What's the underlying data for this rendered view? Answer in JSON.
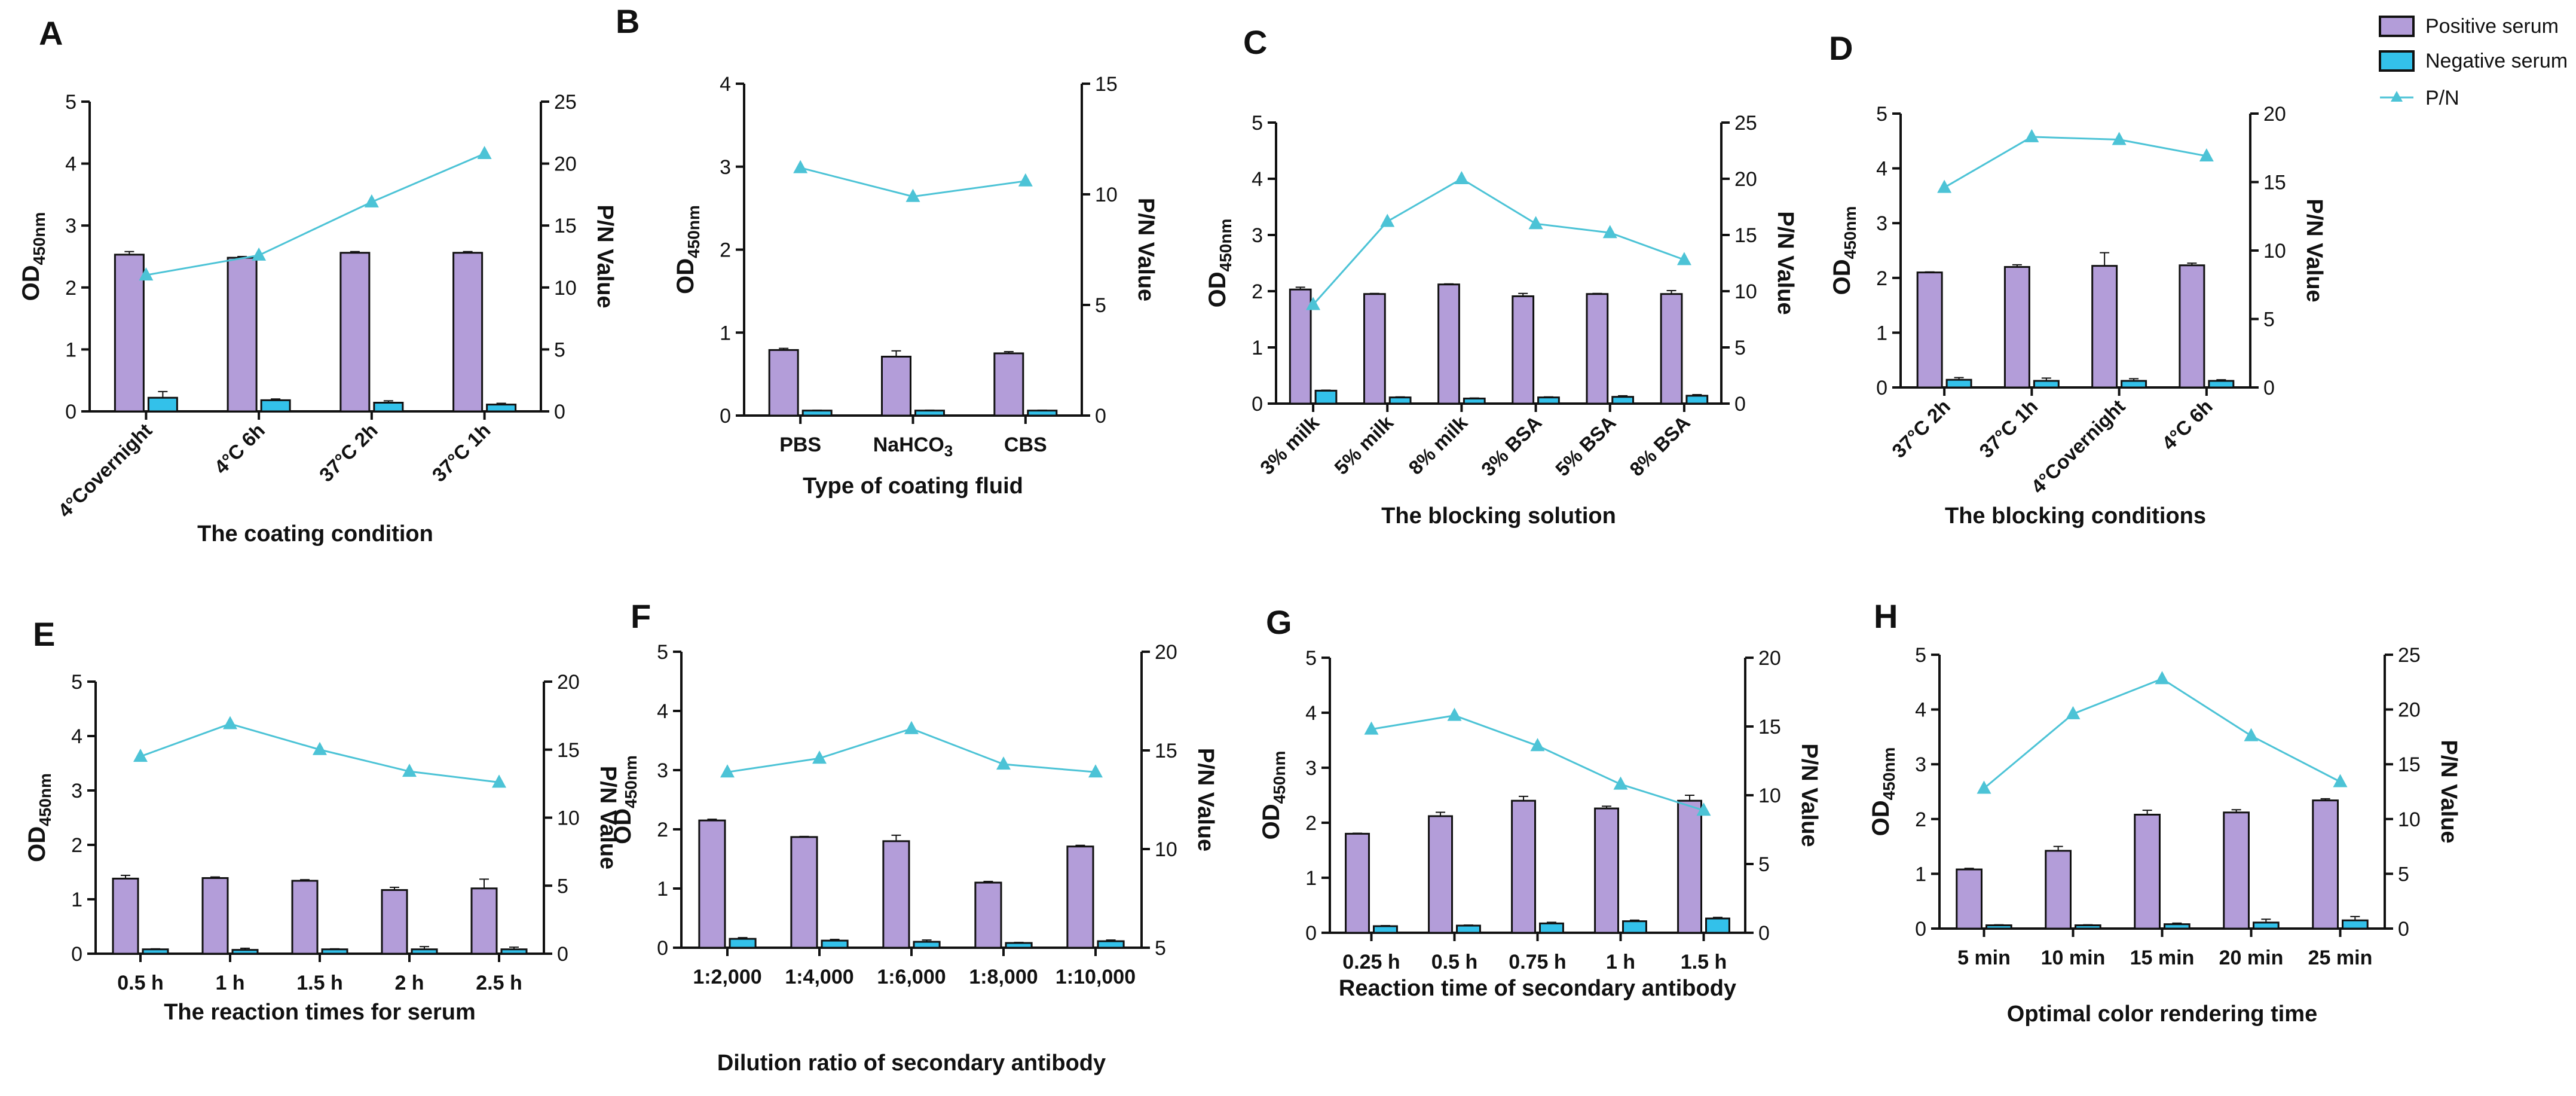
{
  "legend": {
    "positive": "Positive serum",
    "negative": "Negative serum",
    "pn": "P/N"
  },
  "colors": {
    "positive": "#B39DD9",
    "negative": "#33C1EA",
    "pn": "#4CC3D6",
    "axis": "#111111"
  },
  "chart_data": [
    {
      "id": "A",
      "type": "bar",
      "xlabel": "The  coating condition",
      "ylabel_main": "OD",
      "ylabel_sub": "450nm",
      "y2label": "P/N Value",
      "ylim": [
        0,
        5
      ],
      "yticks": [
        0,
        1,
        2,
        3,
        4,
        5
      ],
      "y2lim": [
        0,
        25
      ],
      "y2ticks": [
        0,
        5,
        10,
        15,
        20,
        25
      ],
      "categories": [
        "4°Covernight",
        "4°C 6h",
        "37°C 2h",
        "37°C 1h"
      ],
      "rotate_labels": true,
      "series": [
        {
          "name": "Positive serum",
          "values": [
            2.53,
            2.48,
            2.56,
            2.56
          ],
          "errors": [
            0.05,
            0.02,
            0.02,
            0.02
          ]
        },
        {
          "name": "Negative serum",
          "values": [
            0.22,
            0.18,
            0.14,
            0.11
          ],
          "errors": [
            0.1,
            0.02,
            0.03,
            0.02
          ]
        }
      ],
      "pn": [
        11.0,
        12.6,
        16.9,
        20.8
      ]
    },
    {
      "id": "B",
      "type": "bar",
      "xlabel": "Type of coating fluid",
      "ylabel_main": "OD",
      "ylabel_sub": "450nm",
      "y2label": "P/N Value",
      "ylim": [
        0,
        4
      ],
      "yticks": [
        0,
        1,
        2,
        3,
        4
      ],
      "y2lim": [
        0,
        15
      ],
      "y2ticks": [
        0,
        5,
        10,
        15
      ],
      "categories": [
        "PBS",
        "NaHCO3",
        "CBS"
      ],
      "rotate_labels": false,
      "series": [
        {
          "name": "Positive serum",
          "values": [
            0.79,
            0.71,
            0.75
          ],
          "errors": [
            0.02,
            0.07,
            0.02
          ]
        },
        {
          "name": "Negative serum",
          "values": [
            0.06,
            0.06,
            0.06
          ],
          "errors": [
            0.005,
            0.005,
            0.005
          ]
        }
      ],
      "pn": [
        11.2,
        9.9,
        10.6
      ]
    },
    {
      "id": "C",
      "type": "bar",
      "xlabel": "The  blocking solution",
      "ylabel_main": "OD",
      "ylabel_sub": "450nm",
      "y2label": "P/N Value",
      "ylim": [
        0,
        5
      ],
      "yticks": [
        0,
        1,
        2,
        3,
        4,
        5
      ],
      "y2lim": [
        0,
        25
      ],
      "y2ticks": [
        0,
        5,
        10,
        15,
        20,
        25
      ],
      "categories": [
        "3% milk",
        "5% milk",
        "8% milk",
        "3% BSA",
        "5% BSA",
        "8% BSA"
      ],
      "rotate_labels": true,
      "series": [
        {
          "name": "Positive serum",
          "values": [
            2.03,
            1.95,
            2.12,
            1.91,
            1.95,
            1.95
          ],
          "errors": [
            0.04,
            0.01,
            0.01,
            0.05,
            0.01,
            0.06
          ]
        },
        {
          "name": "Negative serum",
          "values": [
            0.23,
            0.11,
            0.09,
            0.11,
            0.12,
            0.14
          ],
          "errors": [
            0.01,
            0.01,
            0.01,
            0.01,
            0.02,
            0.02
          ]
        }
      ],
      "pn": [
        8.8,
        16.2,
        20.0,
        16.0,
        15.2,
        12.8
      ]
    },
    {
      "id": "D",
      "type": "bar",
      "xlabel": "The  blocking conditions",
      "ylabel_main": "OD",
      "ylabel_sub": "450nm",
      "y2label": "P/N Value",
      "ylim": [
        0,
        5
      ],
      "yticks": [
        0,
        1,
        2,
        3,
        4,
        5
      ],
      "y2lim": [
        0,
        20
      ],
      "y2ticks": [
        0,
        5,
        10,
        15,
        20
      ],
      "categories": [
        "37°C 2h",
        "37°C 1h",
        "4°Covernight",
        "4°C 6h"
      ],
      "rotate_labels": true,
      "series": [
        {
          "name": "Positive serum",
          "values": [
            2.1,
            2.2,
            2.22,
            2.23
          ],
          "errors": [
            0.01,
            0.04,
            0.24,
            0.04
          ]
        },
        {
          "name": "Negative serum",
          "values": [
            0.14,
            0.12,
            0.12,
            0.12
          ],
          "errors": [
            0.04,
            0.05,
            0.04,
            0.02
          ]
        }
      ],
      "pn": [
        14.6,
        18.3,
        18.1,
        16.9
      ]
    },
    {
      "id": "E",
      "type": "bar",
      "xlabel": "The  reaction times for serum",
      "ylabel_main": "OD",
      "ylabel_sub": "450nm",
      "y2label": "P/N Value",
      "ylim": [
        0,
        5
      ],
      "yticks": [
        0,
        1,
        2,
        3,
        4,
        5
      ],
      "y2lim": [
        0,
        20
      ],
      "y2ticks": [
        0,
        5,
        10,
        15,
        20
      ],
      "categories": [
        "0.5 h",
        "1 h",
        "1.5 h",
        "2 h",
        "2.5 h"
      ],
      "rotate_labels": false,
      "series": [
        {
          "name": "Positive serum",
          "values": [
            1.38,
            1.39,
            1.34,
            1.17,
            1.2
          ],
          "errors": [
            0.06,
            0.02,
            0.02,
            0.05,
            0.17
          ]
        },
        {
          "name": "Negative serum",
          "values": [
            0.08,
            0.07,
            0.08,
            0.08,
            0.08
          ],
          "errors": [
            0.01,
            0.03,
            0.01,
            0.05,
            0.04
          ]
        }
      ],
      "pn": [
        14.5,
        16.9,
        15.0,
        13.4,
        12.6
      ]
    },
    {
      "id": "F",
      "type": "bar",
      "xlabel": "Dilution ratio of secondary antibody",
      "ylabel_main": "OD",
      "ylabel_sub": "450nm",
      "y2label": "P/N Value",
      "ylim": [
        0,
        5
      ],
      "yticks": [
        0,
        1,
        2,
        3,
        4,
        5
      ],
      "y2lim": [
        5,
        20
      ],
      "y2ticks": [
        5,
        10,
        15,
        20
      ],
      "categories": [
        "1:2,000",
        "1:4,000",
        "1:6,000",
        "1:8,000",
        "1:10,000"
      ],
      "rotate_labels": false,
      "series": [
        {
          "name": "Positive serum",
          "values": [
            2.15,
            1.87,
            1.8,
            1.1,
            1.71
          ],
          "errors": [
            0.02,
            0.01,
            0.1,
            0.02,
            0.02
          ]
        },
        {
          "name": "Negative serum",
          "values": [
            0.15,
            0.12,
            0.1,
            0.08,
            0.11
          ],
          "errors": [
            0.02,
            0.02,
            0.03,
            0.01,
            0.02
          ]
        }
      ],
      "pn": [
        13.9,
        14.6,
        16.1,
        14.3,
        13.9
      ]
    },
    {
      "id": "G",
      "type": "bar",
      "xlabel": "Reaction time of secondary antibody",
      "ylabel_main": "OD",
      "ylabel_sub": "450nm",
      "y2label": "P/N Value",
      "ylim": [
        0,
        5
      ],
      "yticks": [
        0,
        1,
        2,
        3,
        4,
        5
      ],
      "y2lim": [
        0,
        20
      ],
      "y2ticks": [
        0,
        5,
        10,
        15,
        20
      ],
      "categories": [
        "0.25 h",
        "0.5 h",
        "0.75 h",
        "1 h",
        "1.5 h"
      ],
      "rotate_labels": false,
      "series": [
        {
          "name": "Positive serum",
          "values": [
            1.8,
            2.12,
            2.4,
            2.26,
            2.4
          ],
          "errors": [
            0.01,
            0.07,
            0.08,
            0.04,
            0.1
          ]
        },
        {
          "name": "Negative serum",
          "values": [
            0.12,
            0.13,
            0.17,
            0.21,
            0.26
          ],
          "errors": [
            0.01,
            0.01,
            0.02,
            0.02,
            0.02
          ]
        }
      ],
      "pn": [
        14.8,
        15.8,
        13.6,
        10.8,
        8.9
      ]
    },
    {
      "id": "H",
      "type": "bar",
      "xlabel": "Optimal color rendering time",
      "ylabel_main": "OD",
      "ylabel_sub": "450nm",
      "y2label": "P/N Value",
      "ylim": [
        0,
        5
      ],
      "yticks": [
        0,
        1,
        2,
        3,
        4,
        5
      ],
      "y2lim": [
        0,
        25
      ],
      "y2ticks": [
        0,
        5,
        10,
        15,
        20,
        25
      ],
      "categories": [
        "5 min",
        "10 min",
        "15 min",
        "20 min",
        "25 min"
      ],
      "rotate_labels": false,
      "series": [
        {
          "name": "Positive serum",
          "values": [
            1.08,
            1.42,
            2.08,
            2.12,
            2.34
          ],
          "errors": [
            0.02,
            0.08,
            0.08,
            0.05,
            0.03
          ]
        },
        {
          "name": "Negative serum",
          "values": [
            0.06,
            0.06,
            0.08,
            0.11,
            0.15
          ],
          "errors": [
            0.01,
            0.01,
            0.02,
            0.06,
            0.07
          ]
        }
      ],
      "pn": [
        12.8,
        19.6,
        22.8,
        17.6,
        13.4
      ]
    }
  ]
}
